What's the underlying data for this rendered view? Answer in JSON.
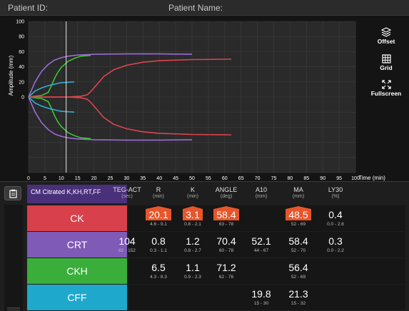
{
  "header": {
    "patient_id_label": "Patient ID:",
    "patient_name_label": "Patient Name:"
  },
  "chart": {
    "y_label": "Amplitude (mm)",
    "x_label": "Time (min)",
    "y_ticks": [
      "100",
      "80",
      "60",
      "40",
      "20",
      "0"
    ],
    "x_ticks": [
      "0",
      "5",
      "10",
      "15",
      "20",
      "25",
      "30",
      "35",
      "40",
      "45",
      "50",
      "55",
      "60",
      "65",
      "70",
      "75",
      "80",
      "85",
      "90",
      "95",
      "100"
    ]
  },
  "chart_data": {
    "type": "line",
    "xlabel": "Time (min)",
    "ylabel": "Amplitude (mm)",
    "xlim": [
      0,
      100
    ],
    "ylim": [
      -100,
      100
    ],
    "y_ticks_shown": [
      0,
      20,
      40,
      60,
      80,
      100
    ],
    "cursor_x": 11.5,
    "series": [
      {
        "color": "#9b6bd6",
        "x": [
          0,
          2,
          4,
          6,
          8,
          10,
          12,
          15,
          20,
          30,
          40,
          50
        ],
        "y": [
          0,
          20,
          34,
          43,
          49,
          52,
          54,
          55.5,
          56.5,
          57,
          57,
          56.5
        ]
      },
      {
        "color": "#3ac43a",
        "x": [
          0,
          4,
          6,
          7,
          8,
          9,
          10,
          11,
          12,
          14,
          16,
          19
        ],
        "y": [
          0,
          2,
          6,
          15,
          25,
          33,
          39,
          43,
          47,
          51,
          54,
          55
        ]
      },
      {
        "color": "#2fb0d3",
        "x": [
          0,
          2,
          4,
          6,
          8,
          10,
          14
        ],
        "y": [
          0,
          8,
          12,
          15,
          17,
          19,
          20
        ]
      },
      {
        "color": "#e04450",
        "x": [
          0,
          12,
          16,
          18,
          19,
          21,
          23,
          26,
          30,
          35,
          40,
          50,
          62
        ],
        "y": [
          0,
          0,
          1,
          3,
          7,
          17,
          27,
          36,
          42,
          46,
          48,
          49.5,
          50
        ]
      }
    ],
    "mirrored": true
  },
  "toolbar": {
    "offset": "Offset",
    "grid": "Grid",
    "fullscreen": "Fullscreen"
  },
  "reagent_label": "CM Citrated K,KH,RT,FF",
  "columns": [
    {
      "title": "TEG-ACT",
      "unit": "(sec)"
    },
    {
      "title": "R",
      "unit": "(min)"
    },
    {
      "title": "K",
      "unit": "(min)"
    },
    {
      "title": "ANGLE",
      "unit": "(deg)"
    },
    {
      "title": "A10",
      "unit": "(mm)"
    },
    {
      "title": "MA",
      "unit": "(mm)"
    },
    {
      "title": "LY30",
      "unit": "(%)"
    }
  ],
  "rows": [
    {
      "name": "CK",
      "color": "#d8414b",
      "cells": [
        {
          "v": "",
          "r": ""
        },
        {
          "v": "20.1",
          "r": "4.6 - 9.1",
          "flag": true
        },
        {
          "v": "3.1",
          "r": "0.8 - 2.1",
          "flag": true
        },
        {
          "v": "58.4",
          "r": "63 - 78",
          "flag": true
        },
        {
          "v": "",
          "r": ""
        },
        {
          "v": "48.5",
          "r": "52 - 69",
          "flag": true
        },
        {
          "v": "0.4",
          "r": "0.0 - 2.6"
        }
      ]
    },
    {
      "name": "CRT",
      "color": "#7f5ab7",
      "cells": [
        {
          "v": "104",
          "r": "82 - 152"
        },
        {
          "v": "0.8",
          "r": "0.3 - 1.1"
        },
        {
          "v": "1.2",
          "r": "0.8 - 2.7"
        },
        {
          "v": "70.4",
          "r": "60 - 78"
        },
        {
          "v": "52.1",
          "r": "44 - 67"
        },
        {
          "v": "58.4",
          "r": "52 - 70"
        },
        {
          "v": "0.3",
          "r": "0.0 - 2.2"
        }
      ]
    },
    {
      "name": "CKH",
      "color": "#3aae3a",
      "cells": [
        {
          "v": "",
          "r": ""
        },
        {
          "v": "6.5",
          "r": "4.3 - 8.3"
        },
        {
          "v": "1.1",
          "r": "0.9 - 2.3"
        },
        {
          "v": "71.2",
          "r": "62 - 76"
        },
        {
          "v": "",
          "r": ""
        },
        {
          "v": "56.4",
          "r": "52 - 69"
        },
        {
          "v": "",
          "r": ""
        }
      ]
    },
    {
      "name": "CFF",
      "color": "#1ea9cc",
      "cells": [
        {
          "v": "",
          "r": ""
        },
        {
          "v": "",
          "r": ""
        },
        {
          "v": "",
          "r": ""
        },
        {
          "v": "",
          "r": ""
        },
        {
          "v": "19.8",
          "r": "15 - 30"
        },
        {
          "v": "21.3",
          "r": "15 - 32"
        },
        {
          "v": "",
          "r": ""
        }
      ]
    }
  ]
}
